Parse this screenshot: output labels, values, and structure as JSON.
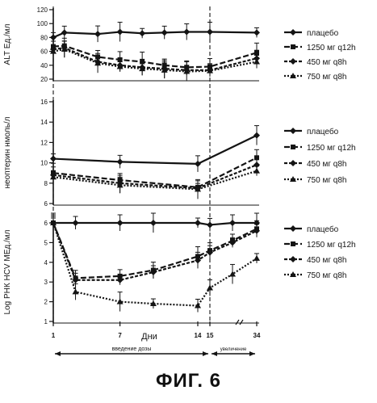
{
  "figure_title": "ФИГ. 6",
  "x_axis": {
    "label": "Дни",
    "ticks": [
      {
        "day": 1,
        "label": "1"
      },
      {
        "day": 7,
        "label": "7"
      },
      {
        "day": 14,
        "label": "14"
      },
      {
        "day": 15,
        "label": "15"
      },
      {
        "day": 34,
        "label": "34"
      }
    ],
    "phases": [
      {
        "label": "введение дозы",
        "from": 1,
        "to": 15
      },
      {
        "label": "увеличение",
        "from": 15,
        "to": 34
      }
    ]
  },
  "chart_data": [
    {
      "type": "line",
      "ylabel": "ALT Ед./мл",
      "ylim": [
        20,
        120
      ],
      "yticks": [
        20,
        40,
        60,
        80,
        100,
        120
      ],
      "series": [
        {
          "name": "плацебо",
          "marker": "diamond",
          "x": [
            1,
            2,
            5,
            7,
            9,
            11,
            13,
            15,
            34
          ],
          "y": [
            80,
            87,
            85,
            88,
            86,
            87,
            88,
            88,
            87
          ]
        },
        {
          "name": "1250 мг q12h",
          "marker": "square",
          "x": [
            1,
            2,
            5,
            7,
            9,
            11,
            13,
            15,
            34
          ],
          "y": [
            67,
            68,
            52,
            48,
            45,
            40,
            37,
            38,
            58
          ]
        },
        {
          "name": "450 мг q8h",
          "marker": "diamond",
          "x": [
            1,
            2,
            5,
            7,
            9,
            11,
            13,
            15,
            34
          ],
          "y": [
            63,
            65,
            45,
            40,
            37,
            35,
            33,
            33,
            50
          ]
        },
        {
          "name": "750 мг q8h",
          "marker": "triangle",
          "x": [
            1,
            2,
            5,
            7,
            9,
            11,
            13,
            15,
            34
          ],
          "y": [
            60,
            63,
            43,
            38,
            35,
            33,
            31,
            32,
            45
          ]
        }
      ]
    },
    {
      "type": "line",
      "ylabel": "неоптерин нмоль/л",
      "ylim": [
        6,
        16
      ],
      "yticks": [
        6,
        8,
        10,
        12,
        14,
        16
      ],
      "series": [
        {
          "name": "плацебо",
          "marker": "diamond",
          "x": [
            1,
            7,
            14,
            34
          ],
          "y": [
            10.4,
            10.1,
            9.9,
            12.7
          ]
        },
        {
          "name": "1250 мг q12h",
          "marker": "square",
          "x": [
            1,
            7,
            14,
            34
          ],
          "y": [
            9.0,
            8.3,
            7.6,
            10.5
          ]
        },
        {
          "name": "450 мг q8h",
          "marker": "diamond",
          "x": [
            1,
            7,
            14,
            34
          ],
          "y": [
            8.8,
            8.0,
            7.5,
            9.8
          ]
        },
        {
          "name": "750 мг q8h",
          "marker": "triangle",
          "x": [
            1,
            7,
            14,
            34
          ],
          "y": [
            8.6,
            7.8,
            7.4,
            9.2
          ]
        }
      ]
    },
    {
      "type": "line",
      "ylabel": "Log РНК HCV МЕд./мл",
      "ylim": [
        1,
        6
      ],
      "yticks": [
        1,
        2,
        3,
        4,
        5,
        6
      ],
      "series": [
        {
          "name": "плацебо",
          "marker": "diamond",
          "x": [
            1,
            3,
            7,
            10,
            14,
            15,
            17,
            34
          ],
          "y": [
            6.0,
            6.0,
            6.0,
            6.0,
            6.0,
            5.9,
            6.0,
            6.0
          ]
        },
        {
          "name": "1250 мг q12h",
          "marker": "square",
          "x": [
            1,
            3,
            7,
            10,
            14,
            15,
            17,
            34
          ],
          "y": [
            6.0,
            3.2,
            3.3,
            3.6,
            4.3,
            4.6,
            5.1,
            5.7
          ]
        },
        {
          "name": "450 мг q8h",
          "marker": "diamond",
          "x": [
            1,
            3,
            7,
            10,
            14,
            15,
            17,
            34
          ],
          "y": [
            6.0,
            3.1,
            3.1,
            3.5,
            4.1,
            4.5,
            5.0,
            5.6
          ]
        },
        {
          "name": "750 мг q8h",
          "marker": "triangle",
          "x": [
            1,
            3,
            7,
            10,
            14,
            15,
            17,
            34
          ],
          "y": [
            6.0,
            2.5,
            2.0,
            1.9,
            1.8,
            2.7,
            3.4,
            4.2
          ]
        }
      ]
    }
  ]
}
